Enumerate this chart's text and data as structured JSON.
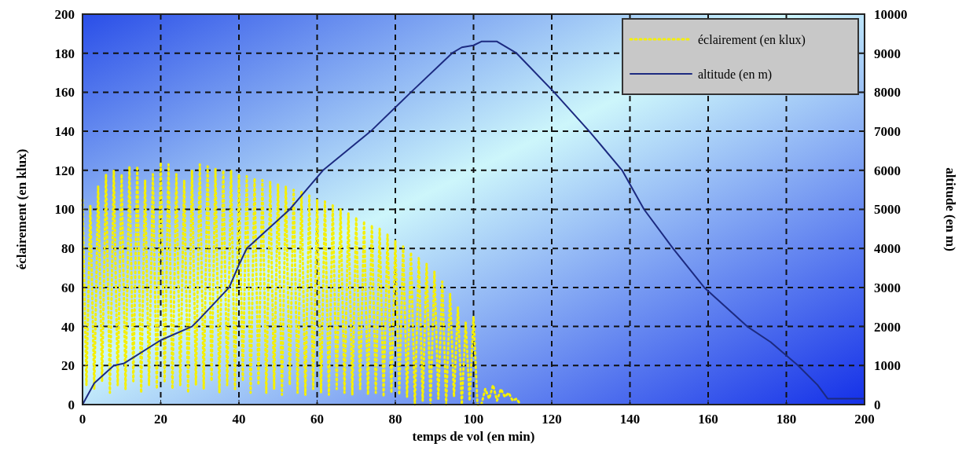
{
  "chart_data": {
    "type": "line",
    "xlabel": "temps de vol (en min)",
    "ylabel": "éclairement (en klux)",
    "y2label": "altitude (en m)",
    "xlim": [
      0,
      200
    ],
    "xticks": [
      0,
      20,
      40,
      60,
      80,
      100,
      120,
      140,
      160,
      180,
      200
    ],
    "ylim": [
      0,
      200
    ],
    "yticks": [
      0,
      20,
      40,
      60,
      80,
      100,
      120,
      140,
      160,
      180,
      200
    ],
    "y2lim": [
      0,
      10000
    ],
    "y2ticks": [
      0,
      1000,
      2000,
      3000,
      4000,
      5000,
      6000,
      7000,
      8000,
      9000,
      10000
    ],
    "grid": true,
    "legend": "top right",
    "series": [
      {
        "name": "éclairement (en klux)",
        "color": "#f5f000",
        "line_style": "dotted",
        "x": [
          0,
          1,
          2,
          3,
          4,
          5,
          6,
          7,
          8,
          9,
          10,
          11,
          12,
          13,
          14,
          15,
          16,
          17,
          18,
          19,
          20,
          21,
          22,
          23,
          24,
          25,
          26,
          27,
          28,
          29,
          30,
          31,
          32,
          33,
          34,
          35,
          36,
          37,
          38,
          39,
          40,
          41,
          42,
          43,
          44,
          45,
          46,
          47,
          48,
          49,
          50,
          51,
          52,
          53,
          54,
          55,
          56,
          57,
          58,
          59,
          60,
          61,
          62,
          63,
          64,
          65,
          66,
          67,
          68,
          69,
          70,
          71,
          72,
          73,
          74,
          75,
          76,
          77,
          78,
          79,
          80,
          81,
          82,
          83,
          84,
          85,
          86,
          87,
          88,
          89,
          90,
          91,
          92,
          93,
          94,
          95,
          96,
          97,
          98,
          99,
          100,
          101,
          102,
          103,
          104,
          105,
          106,
          107,
          108,
          109,
          110,
          111,
          112
        ],
        "values": [
          105,
          10,
          102,
          8,
          112,
          12,
          118,
          6,
          120,
          10,
          118,
          8,
          122,
          12,
          122,
          6,
          115,
          10,
          118,
          8,
          124,
          12,
          123,
          8,
          118,
          10,
          115,
          6,
          120,
          10,
          123,
          8,
          122,
          12,
          121,
          6,
          120,
          10,
          120,
          8,
          118,
          12,
          117,
          6,
          116,
          10,
          115,
          6,
          114,
          8,
          113,
          5,
          112,
          10,
          110,
          6,
          109,
          5,
          107,
          8,
          105,
          6,
          104,
          5,
          102,
          8,
          100,
          6,
          98,
          5,
          96,
          8,
          94,
          5,
          92,
          6,
          90,
          4,
          87,
          6,
          84,
          5,
          81,
          4,
          78,
          0,
          75,
          2,
          72,
          0,
          68,
          3,
          63,
          0,
          57,
          4,
          50,
          0,
          42,
          2,
          45,
          0,
          0,
          8,
          3,
          10,
          2,
          8,
          4,
          6,
          2,
          3,
          0
        ]
      },
      {
        "name": "altitude (en m)",
        "color": "#1c2a80",
        "axis": "y2",
        "line_style": "solid",
        "x": [
          0,
          3,
          8,
          10.5,
          20,
          28,
          30,
          37.5,
          40,
          42,
          53,
          61.5,
          73.7,
          84,
          94.5,
          97,
          100,
          102,
          106,
          111,
          120.6,
          129.6,
          138,
          143.6,
          151,
          159,
          170,
          176,
          183,
          188,
          190.6,
          200
        ],
        "values": [
          0,
          550,
          1000,
          1050,
          1650,
          2000,
          2200,
          3000,
          3580,
          4000,
          5000,
          6000,
          7000,
          8000,
          9000,
          9150,
          9200,
          9300,
          9300,
          9000,
          8000,
          7000,
          6000,
          5000,
          4000,
          3000,
          2000,
          1600,
          1000,
          500,
          150,
          150
        ]
      }
    ]
  }
}
